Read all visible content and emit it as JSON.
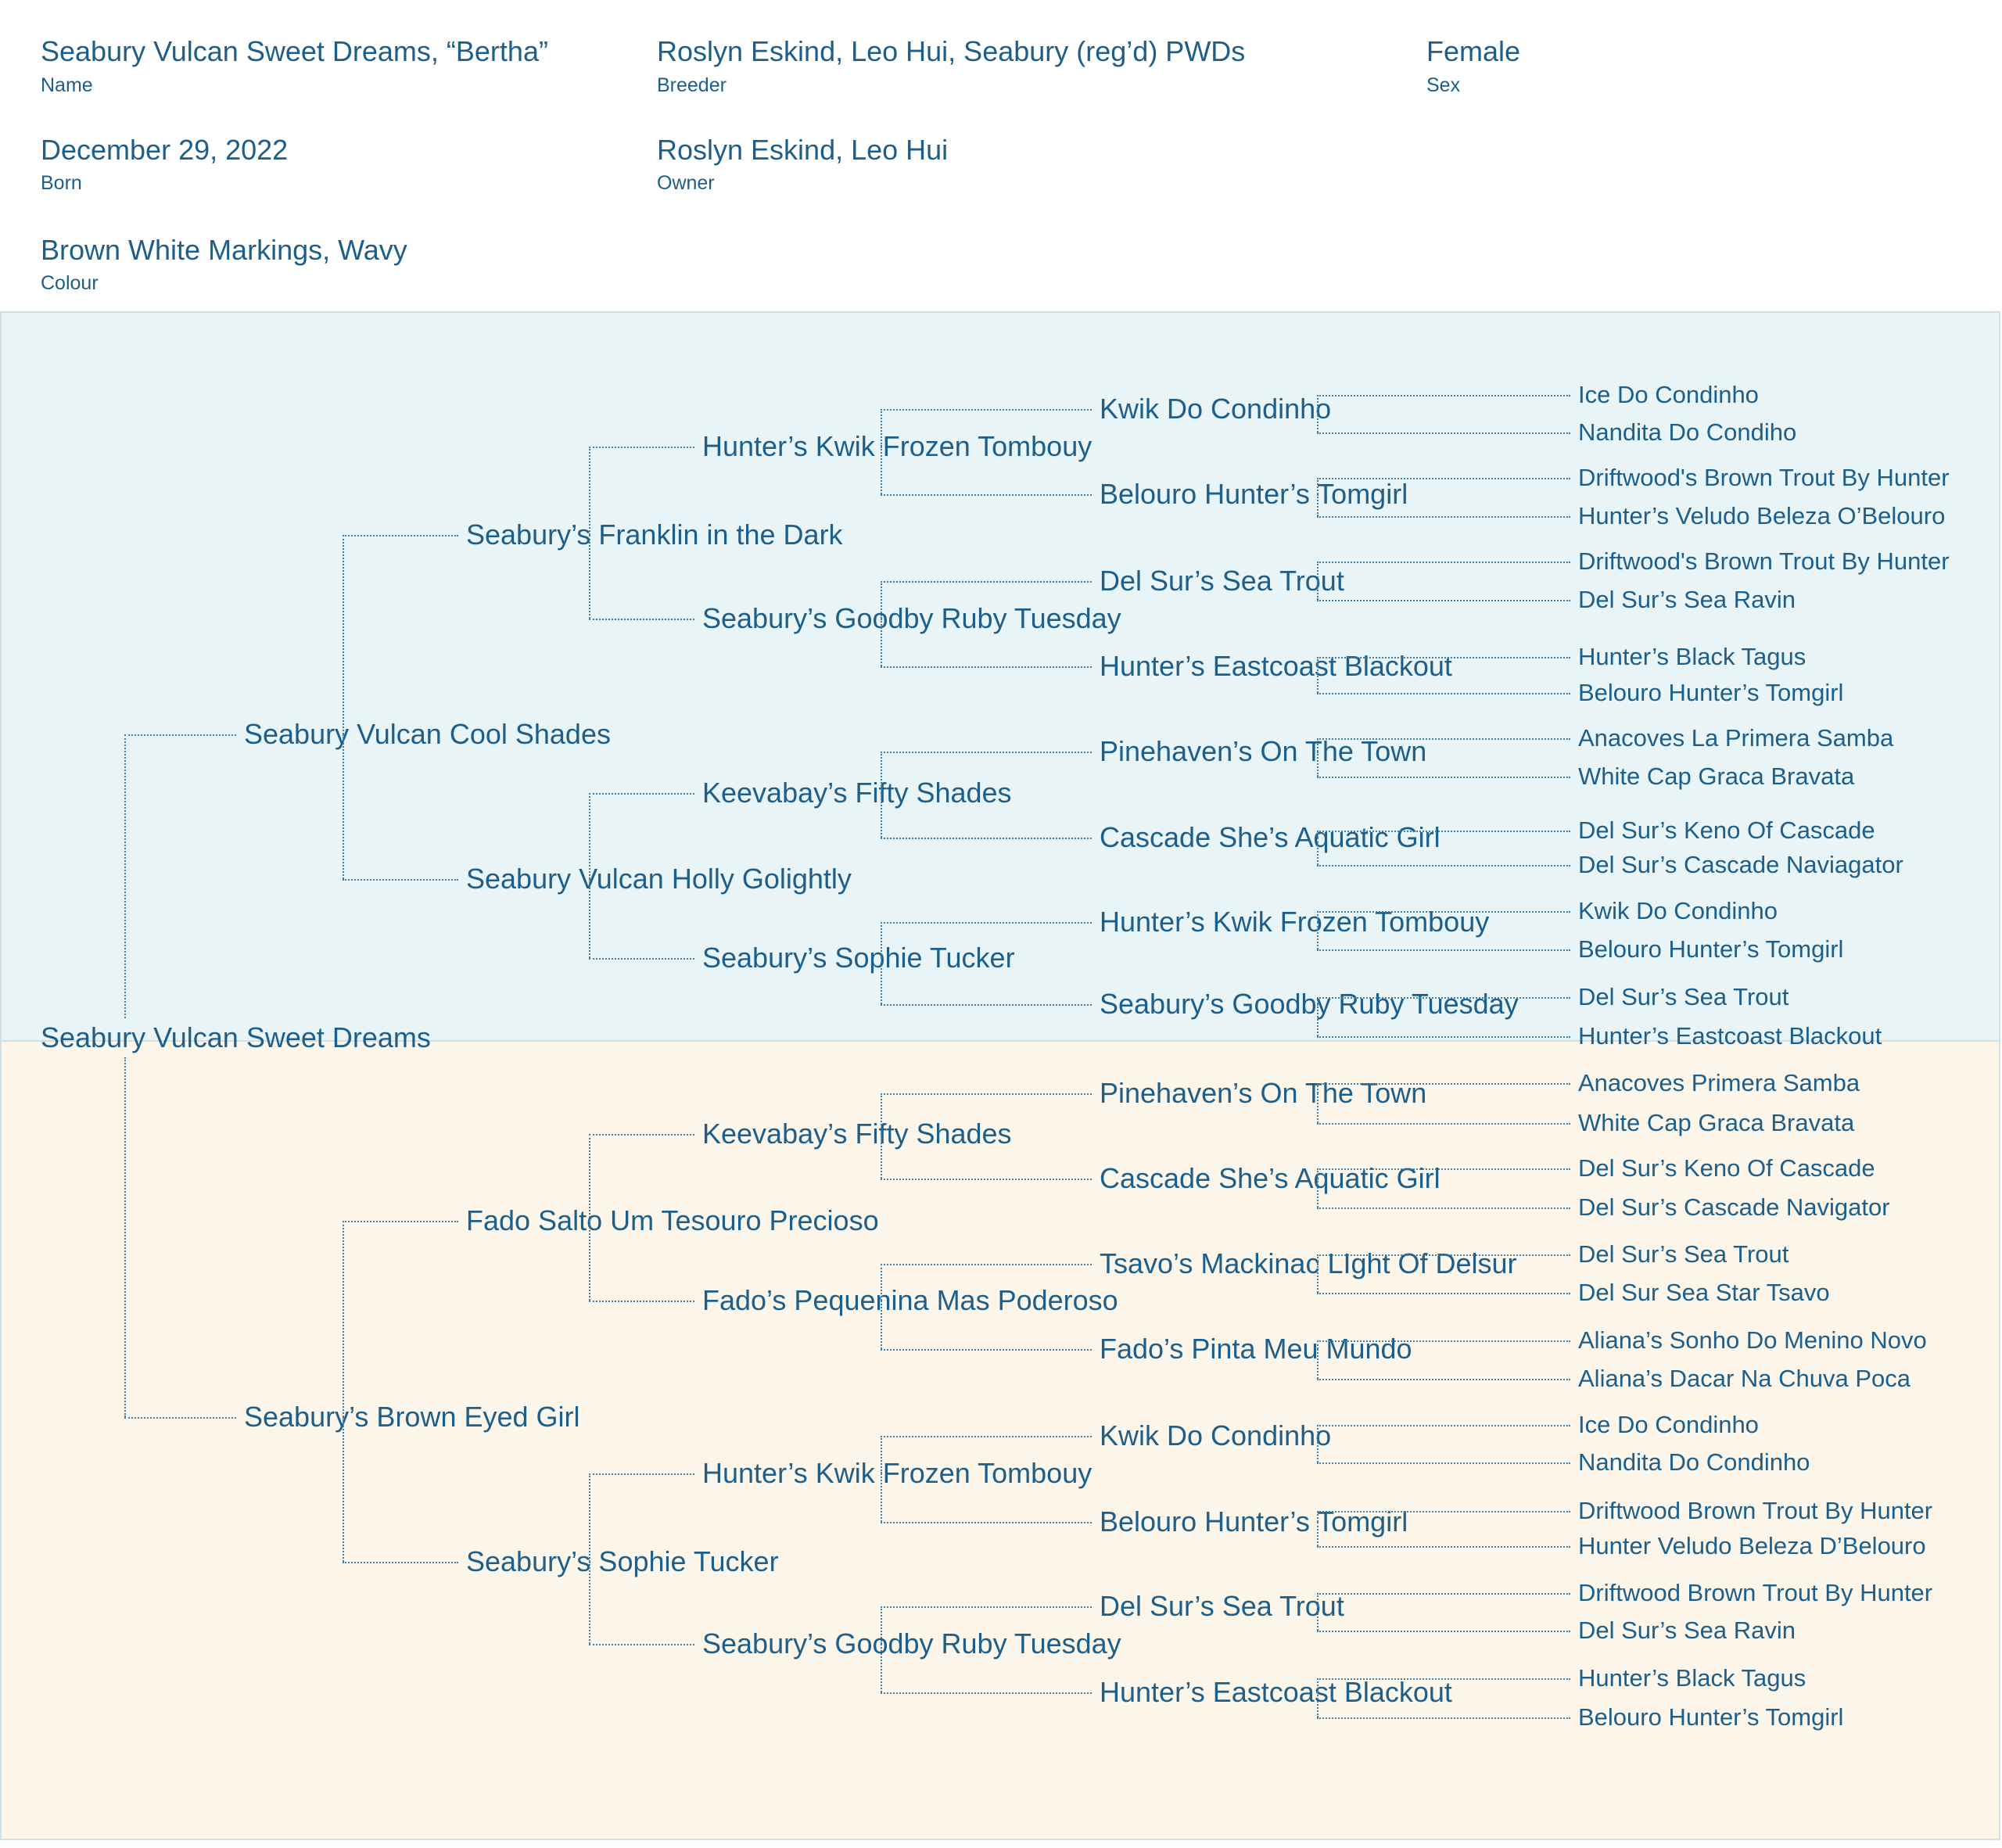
{
  "header": {
    "name": {
      "value": "Seabury Vulcan Sweet Dreams, “Bertha”",
      "label": "Name"
    },
    "breeder": {
      "value": "Roslyn Eskind, Leo Hui, Seabury (reg’d) PWDs",
      "label": "Breeder"
    },
    "sex": {
      "value": "Female",
      "label": "Sex"
    },
    "born": {
      "value": "December 29, 2022",
      "label": "Born"
    },
    "owner": {
      "value": "Roslyn Eskind, Leo Hui",
      "label": "Owner"
    },
    "colour": {
      "value": "Brown White Markings, Wavy",
      "label": "Colour"
    }
  },
  "colors": {
    "text": "#1d5f8a",
    "sire_side_bg": "#e8f4f6",
    "dam_side_bg": "#fbf6e9",
    "border": "#cfe0e8"
  },
  "pedigree": {
    "name": "Seabury Vulcan Sweet Dreams",
    "sire": {
      "name": "Seabury Vulcan Cool Shades",
      "sire": {
        "name": "Seabury’s Franklin in the Dark",
        "sire": {
          "name": "Hunter’s Kwik Frozen Tombouy",
          "sire": {
            "name": "Kwik Do Condinho",
            "sire": {
              "name": "Ice Do Condinho"
            },
            "dam": {
              "name": "Nandita Do Condiho"
            }
          },
          "dam": {
            "name": "Belouro Hunter’s Tomgirl",
            "sire": {
              "name": "Driftwood's Brown Trout By Hunter"
            },
            "dam": {
              "name": "Hunter’s Veludo Beleza O’Belouro"
            }
          }
        },
        "dam": {
          "name": "Seabury’s Goodby Ruby Tuesday",
          "sire": {
            "name": "Del Sur’s Sea Trout",
            "sire": {
              "name": "Driftwood's Brown Trout By Hunter"
            },
            "dam": {
              "name": "Del Sur’s Sea Ravin"
            }
          },
          "dam": {
            "name": "Hunter’s Eastcoast Blackout",
            "sire": {
              "name": "Hunter’s Black Tagus"
            },
            "dam": {
              "name": "Belouro Hunter’s Tomgirl"
            }
          }
        }
      },
      "dam": {
        "name": "Seabury Vulcan Holly Golightly",
        "sire": {
          "name": "Keevabay’s Fifty Shades",
          "sire": {
            "name": "Pinehaven’s On The Town",
            "sire": {
              "name": "Anacoves La Primera Samba"
            },
            "dam": {
              "name": "White Cap Graca Bravata"
            }
          },
          "dam": {
            "name": "Cascade She’s Aquatic Girl",
            "sire": {
              "name": "Del Sur’s Keno Of Cascade"
            },
            "dam": {
              "name": "Del Sur’s Cascade Naviagator"
            }
          }
        },
        "dam": {
          "name": "Seabury’s Sophie Tucker",
          "sire": {
            "name": "Hunter’s Kwik Frozen Tombouy",
            "sire": {
              "name": "Kwik Do Condinho"
            },
            "dam": {
              "name": "Belouro Hunter’s Tomgirl"
            }
          },
          "dam": {
            "name": "Seabury’s Goodby Ruby Tuesday",
            "sire": {
              "name": "Del Sur’s Sea Trout"
            },
            "dam": {
              "name": "Hunter’s Eastcoast Blackout"
            }
          }
        }
      }
    },
    "dam": {
      "name": "Seabury’s Brown Eyed Girl",
      "sire": {
        "name": "Fado Salto Um Tesouro Precioso",
        "sire": {
          "name": "Keevabay’s Fifty Shades",
          "sire": {
            "name": "Pinehaven’s On The Town",
            "sire": {
              "name": "Anacoves Primera Samba"
            },
            "dam": {
              "name": "White Cap Graca Bravata"
            }
          },
          "dam": {
            "name": "Cascade She’s Aquatic Girl",
            "sire": {
              "name": "Del Sur’s Keno Of Cascade"
            },
            "dam": {
              "name": "Del Sur’s Cascade Navigator"
            }
          }
        },
        "dam": {
          "name": "Fado’s Pequenina Mas Poderoso",
          "sire": {
            "name": "Tsavo’s Mackinac LIght Of Delsur",
            "sire": {
              "name": "Del Sur’s Sea Trout"
            },
            "dam": {
              "name": "Del Sur Sea Star Tsavo"
            }
          },
          "dam": {
            "name": "Fado’s Pinta Meu Mundo",
            "sire": {
              "name": "Aliana’s Sonho Do Menino Novo"
            },
            "dam": {
              "name": "Aliana’s Dacar Na Chuva Poca"
            }
          }
        }
      },
      "dam": {
        "name": "Seabury’s Sophie Tucker",
        "sire": {
          "name": "Hunter’s Kwik Frozen Tombouy",
          "sire": {
            "name": "Kwik Do Condinho",
            "sire": {
              "name": "Ice Do Condinho"
            },
            "dam": {
              "name": "Nandita Do Condinho"
            }
          },
          "dam": {
            "name": "Belouro Hunter’s Tomgirl",
            "sire": {
              "name": "Driftwood Brown Trout By Hunter"
            },
            "dam": {
              "name": "Hunter Veludo Beleza D’Belouro"
            }
          }
        },
        "dam": {
          "name": "Seabury’s Goodby Ruby Tuesday",
          "sire": {
            "name": "Del Sur’s Sea Trout",
            "sire": {
              "name": "Driftwood Brown Trout By Hunter"
            },
            "dam": {
              "name": "Del Sur’s Sea Ravin"
            }
          },
          "dam": {
            "name": "Hunter’s Eastcoast Blackout",
            "sire": {
              "name": "Hunter’s Black Tagus"
            },
            "dam": {
              "name": "Belouro Hunter’s Tomgirl"
            }
          }
        }
      }
    }
  }
}
